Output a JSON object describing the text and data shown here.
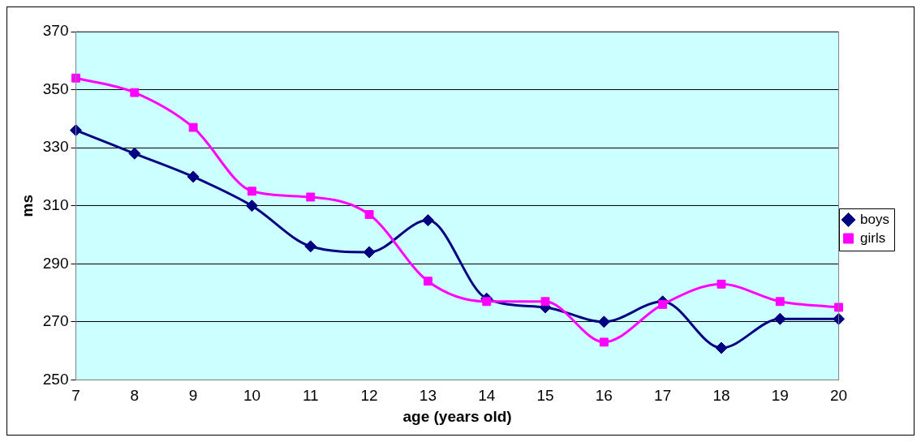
{
  "chart_data": {
    "type": "line",
    "xlabel": "age (years old)",
    "ylabel": "ms",
    "categories": [
      "7",
      "8",
      "9",
      "10",
      "11",
      "12",
      "13",
      "14",
      "15",
      "16",
      "17",
      "18",
      "19",
      "20"
    ],
    "series": [
      {
        "name": "boys",
        "color": "#000080",
        "marker": "diamond",
        "values": [
          336,
          328,
          320,
          310,
          296,
          294,
          305,
          278,
          275,
          270,
          277,
          261,
          271,
          271
        ]
      },
      {
        "name": "girls",
        "color": "#ff00ff",
        "marker": "square",
        "values": [
          354,
          349,
          337,
          315,
          313,
          307,
          284,
          277,
          277,
          263,
          276,
          283,
          277,
          275
        ]
      }
    ],
    "ylim": [
      250,
      370
    ],
    "yticks": [
      250,
      270,
      290,
      310,
      330,
      350,
      370
    ],
    "grid": "y",
    "legend": "right",
    "line_style": "solid"
  }
}
